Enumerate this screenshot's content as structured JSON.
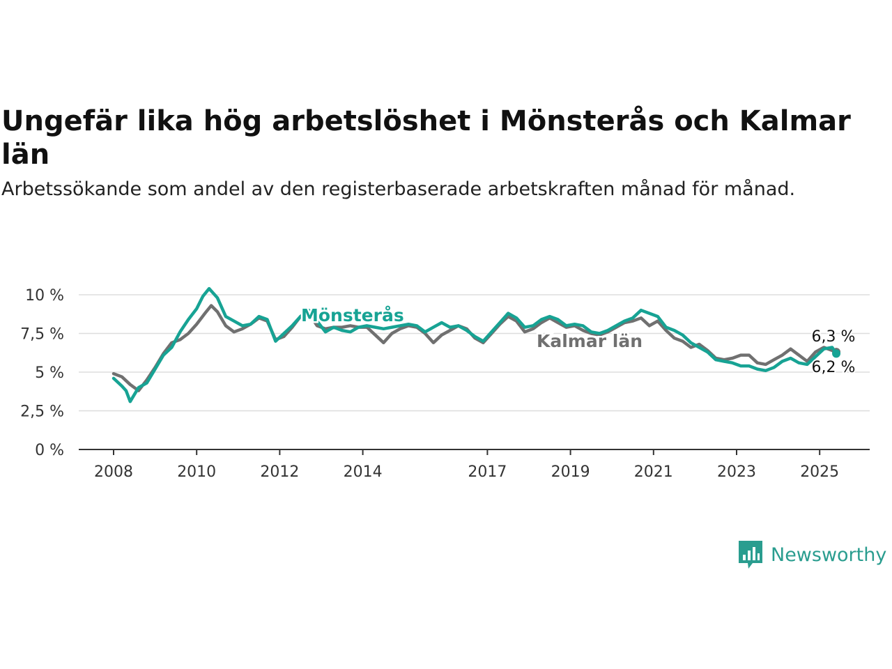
{
  "chart_data": {
    "type": "line",
    "title": "Ungefär lika hög arbetslöshet i Mönsterås och Kalmar län",
    "subtitle": "Arbetssökande som andel av den registerbaserade arbetskraften månad för månad.",
    "y_unit": "%",
    "ylim": [
      0,
      10.5
    ],
    "yticks": [
      0,
      2.5,
      5,
      7.5,
      10
    ],
    "ytick_labels": [
      "0 %",
      "2,5 %",
      "5 %",
      "7,5 %",
      "10 %"
    ],
    "xlim": [
      2007.2,
      2026.2
    ],
    "xticks": [
      2008,
      2010,
      2012,
      2014,
      2017,
      2019,
      2021,
      2023,
      2025
    ],
    "xtick_labels": [
      "2008",
      "2010",
      "2012",
      "2014",
      "2017",
      "2019",
      "2021",
      "2023",
      "2025"
    ],
    "grid": true,
    "series": [
      {
        "name": "Kalmar län",
        "color": "#707070",
        "end_label": "6,3 %",
        "points": [
          [
            2008.0,
            4.9
          ],
          [
            2008.2,
            4.7
          ],
          [
            2008.4,
            4.2
          ],
          [
            2008.6,
            3.8
          ],
          [
            2008.8,
            4.5
          ],
          [
            2009.0,
            5.3
          ],
          [
            2009.2,
            6.2
          ],
          [
            2009.4,
            6.9
          ],
          [
            2009.6,
            7.1
          ],
          [
            2009.8,
            7.5
          ],
          [
            2010.0,
            8.1
          ],
          [
            2010.2,
            8.8
          ],
          [
            2010.35,
            9.3
          ],
          [
            2010.5,
            8.9
          ],
          [
            2010.7,
            8.0
          ],
          [
            2010.9,
            7.6
          ],
          [
            2011.1,
            7.8
          ],
          [
            2011.3,
            8.1
          ],
          [
            2011.5,
            8.5
          ],
          [
            2011.7,
            8.3
          ],
          [
            2011.9,
            7.1
          ],
          [
            2012.1,
            7.3
          ],
          [
            2012.3,
            7.9
          ],
          [
            2012.5,
            8.6
          ],
          [
            2012.7,
            8.8
          ],
          [
            2012.9,
            8.0
          ],
          [
            2013.1,
            7.8
          ],
          [
            2013.3,
            7.9
          ],
          [
            2013.5,
            7.9
          ],
          [
            2013.7,
            8.0
          ],
          [
            2013.9,
            7.9
          ],
          [
            2014.1,
            7.9
          ],
          [
            2014.3,
            7.4
          ],
          [
            2014.5,
            6.9
          ],
          [
            2014.7,
            7.5
          ],
          [
            2014.9,
            7.8
          ],
          [
            2015.1,
            8.0
          ],
          [
            2015.3,
            7.9
          ],
          [
            2015.5,
            7.5
          ],
          [
            2015.7,
            6.9
          ],
          [
            2015.9,
            7.4
          ],
          [
            2016.1,
            7.7
          ],
          [
            2016.3,
            8.0
          ],
          [
            2016.5,
            7.8
          ],
          [
            2016.7,
            7.2
          ],
          [
            2016.9,
            6.9
          ],
          [
            2017.1,
            7.5
          ],
          [
            2017.3,
            8.1
          ],
          [
            2017.5,
            8.6
          ],
          [
            2017.7,
            8.3
          ],
          [
            2017.9,
            7.6
          ],
          [
            2018.1,
            7.8
          ],
          [
            2018.3,
            8.2
          ],
          [
            2018.5,
            8.5
          ],
          [
            2018.7,
            8.2
          ],
          [
            2018.9,
            7.9
          ],
          [
            2019.1,
            8.0
          ],
          [
            2019.3,
            7.7
          ],
          [
            2019.5,
            7.5
          ],
          [
            2019.7,
            7.4
          ],
          [
            2019.9,
            7.6
          ],
          [
            2020.1,
            7.9
          ],
          [
            2020.3,
            8.2
          ],
          [
            2020.5,
            8.3
          ],
          [
            2020.7,
            8.5
          ],
          [
            2020.9,
            8.0
          ],
          [
            2021.1,
            8.3
          ],
          [
            2021.3,
            7.7
          ],
          [
            2021.5,
            7.2
          ],
          [
            2021.7,
            7.0
          ],
          [
            2021.9,
            6.6
          ],
          [
            2022.1,
            6.8
          ],
          [
            2022.3,
            6.4
          ],
          [
            2022.5,
            5.9
          ],
          [
            2022.7,
            5.8
          ],
          [
            2022.9,
            5.9
          ],
          [
            2023.1,
            6.1
          ],
          [
            2023.3,
            6.1
          ],
          [
            2023.5,
            5.6
          ],
          [
            2023.7,
            5.5
          ],
          [
            2023.9,
            5.8
          ],
          [
            2024.1,
            6.1
          ],
          [
            2024.3,
            6.5
          ],
          [
            2024.5,
            6.1
          ],
          [
            2024.7,
            5.7
          ],
          [
            2024.9,
            6.3
          ],
          [
            2025.1,
            6.6
          ],
          [
            2025.3,
            6.4
          ],
          [
            2025.4,
            6.3
          ]
        ]
      },
      {
        "name": "Mönsterås",
        "color": "#17a394",
        "end_label": "6,2 %",
        "points": [
          [
            2008.0,
            4.6
          ],
          [
            2008.2,
            4.1
          ],
          [
            2008.3,
            3.8
          ],
          [
            2008.4,
            3.1
          ],
          [
            2008.6,
            4.0
          ],
          [
            2008.8,
            4.3
          ],
          [
            2009.0,
            5.2
          ],
          [
            2009.2,
            6.1
          ],
          [
            2009.4,
            6.6
          ],
          [
            2009.6,
            7.6
          ],
          [
            2009.8,
            8.4
          ],
          [
            2010.0,
            9.1
          ],
          [
            2010.15,
            9.9
          ],
          [
            2010.3,
            10.4
          ],
          [
            2010.5,
            9.8
          ],
          [
            2010.7,
            8.6
          ],
          [
            2010.9,
            8.3
          ],
          [
            2011.1,
            8.0
          ],
          [
            2011.3,
            8.1
          ],
          [
            2011.5,
            8.6
          ],
          [
            2011.7,
            8.4
          ],
          [
            2011.9,
            7.0
          ],
          [
            2012.1,
            7.5
          ],
          [
            2012.3,
            8.0
          ],
          [
            2012.5,
            8.6
          ],
          [
            2012.7,
            9.0
          ],
          [
            2012.9,
            8.3
          ],
          [
            2013.1,
            7.6
          ],
          [
            2013.3,
            7.9
          ],
          [
            2013.5,
            7.7
          ],
          [
            2013.7,
            7.6
          ],
          [
            2013.9,
            7.9
          ],
          [
            2014.1,
            8.0
          ],
          [
            2014.3,
            7.9
          ],
          [
            2014.5,
            7.8
          ],
          [
            2014.7,
            7.9
          ],
          [
            2014.9,
            8.0
          ],
          [
            2015.1,
            8.1
          ],
          [
            2015.3,
            8.0
          ],
          [
            2015.5,
            7.6
          ],
          [
            2015.7,
            7.9
          ],
          [
            2015.9,
            8.2
          ],
          [
            2016.1,
            7.9
          ],
          [
            2016.3,
            8.0
          ],
          [
            2016.5,
            7.7
          ],
          [
            2016.7,
            7.3
          ],
          [
            2016.9,
            7.0
          ],
          [
            2017.1,
            7.6
          ],
          [
            2017.3,
            8.2
          ],
          [
            2017.5,
            8.8
          ],
          [
            2017.7,
            8.5
          ],
          [
            2017.9,
            7.9
          ],
          [
            2018.1,
            8.0
          ],
          [
            2018.3,
            8.4
          ],
          [
            2018.5,
            8.6
          ],
          [
            2018.7,
            8.4
          ],
          [
            2018.9,
            8.0
          ],
          [
            2019.1,
            8.1
          ],
          [
            2019.3,
            8.0
          ],
          [
            2019.5,
            7.6
          ],
          [
            2019.7,
            7.5
          ],
          [
            2019.9,
            7.7
          ],
          [
            2020.1,
            8.0
          ],
          [
            2020.3,
            8.3
          ],
          [
            2020.5,
            8.5
          ],
          [
            2020.7,
            9.0
          ],
          [
            2020.9,
            8.8
          ],
          [
            2021.1,
            8.6
          ],
          [
            2021.3,
            7.9
          ],
          [
            2021.5,
            7.7
          ],
          [
            2021.7,
            7.4
          ],
          [
            2021.9,
            6.9
          ],
          [
            2022.1,
            6.6
          ],
          [
            2022.3,
            6.3
          ],
          [
            2022.5,
            5.8
          ],
          [
            2022.7,
            5.7
          ],
          [
            2022.9,
            5.6
          ],
          [
            2023.1,
            5.4
          ],
          [
            2023.3,
            5.4
          ],
          [
            2023.5,
            5.2
          ],
          [
            2023.7,
            5.1
          ],
          [
            2023.9,
            5.3
          ],
          [
            2024.1,
            5.7
          ],
          [
            2024.3,
            5.9
          ],
          [
            2024.5,
            5.6
          ],
          [
            2024.7,
            5.5
          ],
          [
            2024.9,
            6.0
          ],
          [
            2025.1,
            6.5
          ],
          [
            2025.3,
            6.6
          ],
          [
            2025.4,
            6.2
          ]
        ]
      }
    ]
  },
  "brand": {
    "name": "Newsworthy",
    "icon": "chart-bubble-icon",
    "color": "#2a9d8f"
  }
}
